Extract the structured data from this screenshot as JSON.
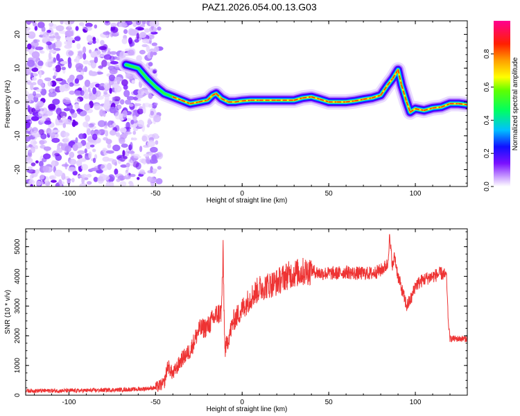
{
  "title": "PAZ1.2026.054.00.13.G03",
  "charts": [
    {
      "type": "heatmap",
      "xlabel": "Height of straight line (km)",
      "ylabel": "Frequency (Hz)",
      "xlim": [
        -125,
        130
      ],
      "ylim": [
        -25,
        24
      ],
      "xticks": [
        -100,
        -50,
        0,
        50,
        100
      ],
      "yticks": [
        -20,
        -10,
        0,
        10,
        20
      ],
      "colorbar": {
        "label": "Normalized spectral amplitude",
        "range": [
          0.0,
          1.0
        ],
        "ticks": [
          0.0,
          0.2,
          0.4,
          0.6,
          0.8
        ],
        "colormap": [
          "#ffffff",
          "#b070ff",
          "#6a00ff",
          "#0000ff",
          "#00d0ff",
          "#00ff40",
          "#ffff00",
          "#ff8000",
          "#ff0000",
          "#ff00a0"
        ]
      },
      "noise_region": [
        -125,
        -50
      ],
      "ridge": {
        "x": [
          -67,
          -60,
          -55,
          -50,
          -45,
          -40,
          -35,
          -30,
          -25,
          -20,
          -17,
          -15,
          -12,
          -8,
          -4,
          0,
          5,
          10,
          20,
          30,
          35,
          40,
          45,
          50,
          55,
          60,
          65,
          70,
          75,
          80,
          84,
          87,
          90,
          92,
          95,
          97,
          100,
          105,
          110,
          115,
          120,
          125,
          130
        ],
        "freq": [
          11,
          10,
          7,
          4.5,
          2.5,
          1.5,
          0.5,
          -0.5,
          0,
          0.5,
          2,
          2.5,
          1,
          0,
          0,
          0.3,
          0.5,
          0.5,
          0.5,
          0.5,
          1.2,
          1.5,
          0.8,
          0,
          0,
          0,
          0.3,
          0.8,
          1.2,
          2,
          5,
          7,
          9.5,
          5,
          0,
          -3,
          -2,
          -2.5,
          -1.8,
          -1.5,
          -0.5,
          -0.5,
          -0.8
        ]
      }
    },
    {
      "type": "line",
      "xlabel": "Height of straight line (km)",
      "ylabel": "SNR (10 * v/v)",
      "xlim": [
        -125,
        130
      ],
      "ylim": [
        0,
        5600
      ],
      "xticks": [
        -100,
        -50,
        0,
        50,
        100
      ],
      "yticks": [
        0,
        1000,
        2000,
        3000,
        4000,
        5000
      ],
      "color": "#ee3333",
      "series": [
        {
          "x": [
            -125,
            -100,
            -80,
            -60,
            -50,
            -45,
            -43,
            -40,
            -35,
            -30,
            -25,
            -20,
            -15,
            -12,
            -11,
            -10,
            -5,
            0,
            5,
            10,
            15,
            20,
            25,
            30,
            35,
            40,
            45,
            50,
            55,
            60,
            65,
            70,
            75,
            80,
            84,
            85,
            87,
            88,
            90,
            93,
            95,
            98,
            100,
            105,
            110,
            115,
            118,
            119,
            120,
            125,
            130
          ],
          "y": [
            150,
            150,
            170,
            200,
            250,
            400,
            1000,
            700,
            1200,
            1500,
            2200,
            2300,
            2700,
            2800,
            4700,
            1500,
            2500,
            2900,
            3300,
            3600,
            3700,
            3800,
            4000,
            4100,
            4150,
            4200,
            4100,
            4100,
            4100,
            4150,
            4100,
            4100,
            4100,
            4200,
            4400,
            5300,
            4300,
            4700,
            4000,
            3400,
            3000,
            3300,
            3700,
            3900,
            4000,
            4100,
            4000,
            2500,
            1900,
            1900,
            1900
          ]
        }
      ]
    }
  ]
}
